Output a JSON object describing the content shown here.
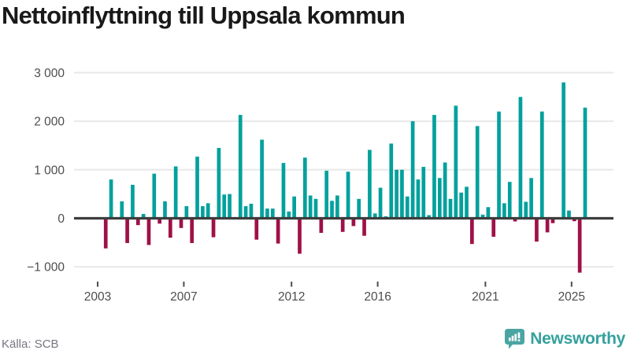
{
  "page": {
    "title": "Nettoinflyttning till Uppsala kommun"
  },
  "footer": {
    "source": "Källa: SCB",
    "brand": "Newsworthy"
  },
  "colors": {
    "positive": "#00a19d",
    "negative": "#9e1147",
    "grid": "#e8e8e8",
    "zero_line": "#3d3d3d",
    "axis_text": "#4d4d4d",
    "title_text": "#191919",
    "source_text": "#76767f",
    "brand_text": "#35a19e",
    "brand_icon": "#4aa5a2"
  },
  "chart_data": {
    "type": "bar",
    "title": "Nettoinflyttning till Uppsala kommun",
    "frequency": "quarterly",
    "period_start": "2003 Q1",
    "period_end": "2025 Q3",
    "grid": true,
    "legend": false,
    "ylim": [
      -1300,
      3100
    ],
    "yticks": [
      {
        "value": 3000,
        "label": "3 000"
      },
      {
        "value": 2000,
        "label": "2 000"
      },
      {
        "value": 1000,
        "label": "1 000"
      },
      {
        "value": 0,
        "label": "0"
      },
      {
        "value": -1000,
        "label": "−1 000"
      }
    ],
    "xticks": [
      {
        "year": 2003,
        "label": "2003"
      },
      {
        "year": 2007,
        "label": "2007"
      },
      {
        "year": 2012,
        "label": "2012"
      },
      {
        "year": 2016,
        "label": "2016"
      },
      {
        "year": 2021,
        "label": "2021"
      },
      {
        "year": 2025,
        "label": "2025"
      }
    ],
    "bar_colors": {
      "positive": "#00a19d",
      "negative": "#9e1147"
    },
    "years": [
      2003,
      2004,
      2005,
      2006,
      2007,
      2008,
      2009,
      2010,
      2011,
      2012,
      2013,
      2014,
      2015,
      2016,
      2017,
      2018,
      2019,
      2020,
      2021,
      2022,
      2023,
      2024,
      2025
    ],
    "values_by_year": {
      "2003": [
        0,
        -620,
        800,
        0
      ],
      "2004": [
        350,
        -510,
        690,
        -140
      ],
      "2005": [
        90,
        -550,
        920,
        -110
      ],
      "2006": [
        350,
        -400,
        1070,
        -200
      ],
      "2007": [
        250,
        -510,
        1270,
        250
      ],
      "2008": [
        310,
        -390,
        1450,
        490
      ],
      "2009": [
        500,
        0,
        2130,
        250
      ],
      "2010": [
        300,
        -440,
        1620,
        200
      ],
      "2011": [
        200,
        -520,
        1140,
        140
      ],
      "2012": [
        450,
        -730,
        1250,
        470
      ],
      "2013": [
        400,
        -300,
        980,
        360
      ],
      "2014": [
        470,
        -280,
        960,
        -160
      ],
      "2015": [
        400,
        -360,
        1410,
        100
      ],
      "2016": [
        630,
        40,
        1540,
        1000
      ],
      "2017": [
        1000,
        450,
        2000,
        800
      ],
      "2018": [
        1060,
        65,
        2130,
        830
      ],
      "2019": [
        1150,
        400,
        2320,
        530
      ],
      "2020": [
        650,
        -530,
        1900,
        75
      ],
      "2021": [
        230,
        -380,
        2200,
        310
      ],
      "2022": [
        750,
        -65,
        2500,
        340
      ],
      "2023": [
        830,
        -480,
        2200,
        -290
      ],
      "2024": [
        -100,
        0,
        2800,
        160
      ],
      "2025": [
        -60,
        -1120,
        2280
      ]
    }
  }
}
